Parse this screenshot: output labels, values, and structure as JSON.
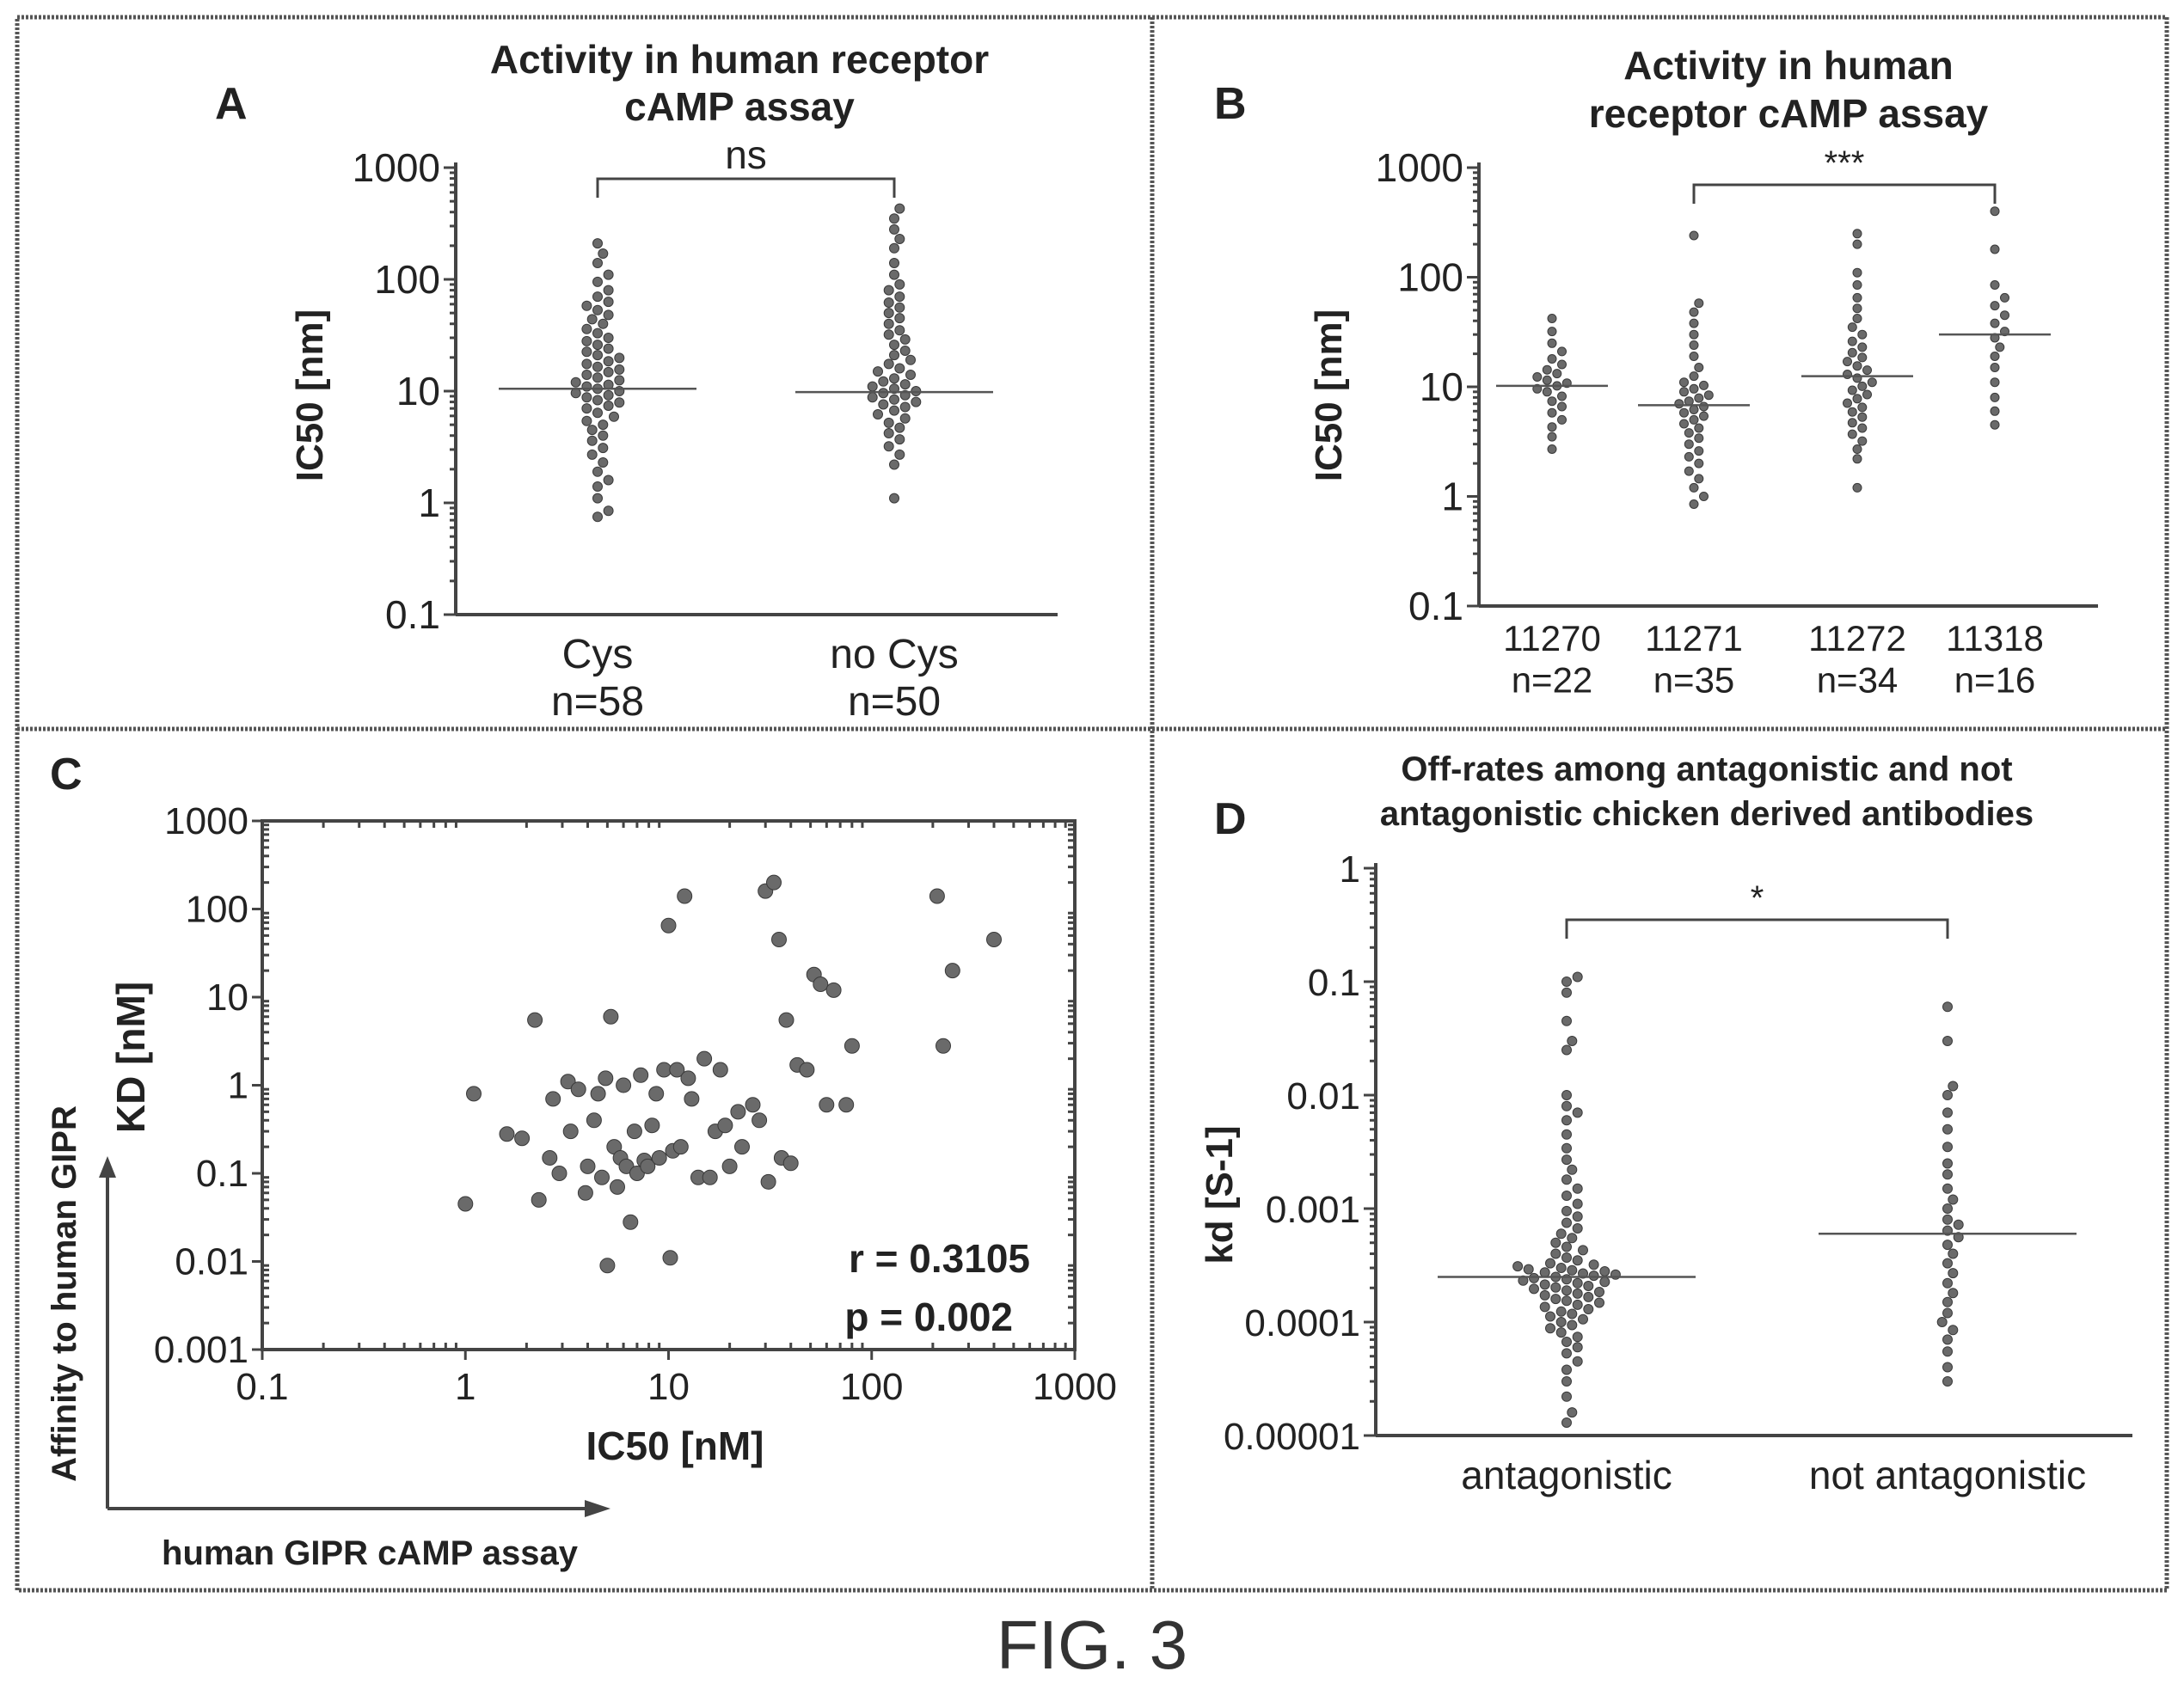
{
  "figure_caption": "FIG. 3",
  "chart_data": [
    {
      "panel": "A",
      "type": "scatter",
      "title": "Activity in human receptor cAMP assay",
      "ylabel": "IC50 [nm]",
      "yscale": "log",
      "ylim": [
        0.1,
        1000
      ],
      "yticks": [
        "1000",
        "100",
        "10",
        "1",
        "0.1"
      ],
      "categories": [
        "Cys",
        "no Cys"
      ],
      "counts": [
        "n=58",
        "n=50"
      ],
      "medians": [
        10.5,
        9.8
      ],
      "significance": "ns",
      "series": [
        {
          "values": [
            0.75,
            0.85,
            1.1,
            1.4,
            1.6,
            1.9,
            2.3,
            2.7,
            3.1,
            3.6,
            4.0,
            4.5,
            5.0,
            5.4,
            5.9,
            6.4,
            7.0,
            7.4,
            7.9,
            8.3,
            8.8,
            9.2,
            9.6,
            10.0,
            10.5,
            11.0,
            11.4,
            12.0,
            12.5,
            13.2,
            14.0,
            14.8,
            15.6,
            16.5,
            17.5,
            18.5,
            19.8,
            21.0,
            22.5,
            24.0,
            26.0,
            28.0,
            30.0,
            33.0,
            36.0,
            40.0,
            44.0,
            48.0,
            53.0,
            58.0,
            63.0,
            70.0,
            80.0,
            95.0,
            110.0,
            140.0,
            170.0,
            210.0
          ]
        },
        {
          "values": [
            1.1,
            2.2,
            2.7,
            3.2,
            3.7,
            4.2,
            4.7,
            5.2,
            5.7,
            6.2,
            6.7,
            7.2,
            7.6,
            8.0,
            8.4,
            8.8,
            9.2,
            9.6,
            10.0,
            10.5,
            11.0,
            11.5,
            12.2,
            13.0,
            14.0,
            15.0,
            16.0,
            17.5,
            19.0,
            21.0,
            23.0,
            26.0,
            29.0,
            32.0,
            35.0,
            40.0,
            45.0,
            50.0,
            56.0,
            62.0,
            70.0,
            80.0,
            90.0,
            110.0,
            140.0,
            190.0,
            230.0,
            280.0,
            350.0,
            430.0
          ]
        }
      ]
    },
    {
      "panel": "B",
      "type": "scatter",
      "title": "Activity in human receptor cAMP assay",
      "ylabel": "IC50 [nm]",
      "yscale": "log",
      "ylim": [
        0.1,
        1000
      ],
      "yticks": [
        "1000",
        "100",
        "10",
        "1",
        "0.1"
      ],
      "categories": [
        "11270",
        "11271",
        "11272",
        "11318"
      ],
      "counts": [
        "n=22",
        "n=35",
        "n=34",
        "n=16"
      ],
      "medians": [
        10.2,
        6.8,
        12.5,
        30.0
      ],
      "significance": "***",
      "series": [
        {
          "values": [
            2.7,
            3.5,
            4.3,
            5.0,
            5.8,
            6.6,
            7.4,
            8.2,
            9.0,
            9.6,
            10.2,
            10.8,
            11.5,
            12.3,
            13.2,
            14.3,
            16.0,
            18.0,
            21.0,
            25.0,
            32.0,
            42.0
          ]
        },
        {
          "values": [
            0.85,
            1.0,
            1.2,
            1.45,
            1.7,
            2.0,
            2.3,
            2.6,
            3.0,
            3.4,
            3.8,
            4.2,
            4.6,
            5.0,
            5.4,
            5.8,
            6.2,
            6.6,
            7.0,
            7.4,
            7.9,
            8.4,
            9.0,
            9.6,
            10.3,
            11.0,
            12.5,
            15.0,
            19.0,
            24.0,
            30.0,
            38.0,
            48.0,
            58.0,
            240.0
          ]
        },
        {
          "values": [
            1.2,
            2.2,
            2.7,
            3.2,
            3.7,
            4.2,
            4.7,
            5.3,
            5.9,
            6.5,
            7.1,
            7.8,
            8.5,
            9.3,
            10.1,
            11.0,
            12.0,
            13.0,
            14.2,
            15.5,
            17.0,
            18.5,
            20.5,
            23.0,
            26.0,
            30.0,
            35.0,
            42.0,
            52.0,
            65.0,
            85.0,
            110.0,
            200.0,
            250.0
          ]
        },
        {
          "values": [
            4.5,
            6.0,
            8.0,
            11.0,
            15.0,
            19.0,
            23.0,
            28.0,
            32.0,
            38.0,
            45.0,
            55.0,
            65.0,
            85.0,
            180.0,
            400.0
          ]
        }
      ]
    },
    {
      "panel": "C",
      "type": "scatter",
      "xlabel": "IC50 [nM]",
      "ylabel": "KD [nM]",
      "xscale": "log",
      "yscale": "log",
      "xlim": [
        0.1,
        1000
      ],
      "ylim": [
        0.001,
        1000
      ],
      "xticks": [
        "0.1",
        "1",
        "10",
        "100",
        "1000"
      ],
      "yticks": [
        "1000",
        "100",
        "10",
        "1",
        "0.1",
        "0.01",
        "0.001"
      ],
      "annotations": [
        "r = 0.3105",
        "p = 0.002"
      ],
      "outer_ylabel": "Affinity to human GIPR",
      "outer_xlabel": "human GIPR  cAMP assay",
      "points": [
        [
          1.0,
          0.045
        ],
        [
          1.1,
          0.8
        ],
        [
          1.6,
          0.28
        ],
        [
          1.9,
          0.25
        ],
        [
          2.2,
          5.5
        ],
        [
          2.3,
          0.05
        ],
        [
          2.6,
          0.15
        ],
        [
          2.7,
          0.7
        ],
        [
          2.9,
          0.1
        ],
        [
          3.2,
          1.1
        ],
        [
          3.3,
          0.3
        ],
        [
          3.6,
          0.9
        ],
        [
          3.9,
          0.06
        ],
        [
          4.0,
          0.12
        ],
        [
          4.3,
          0.4
        ],
        [
          4.5,
          0.8
        ],
        [
          4.7,
          0.09
        ],
        [
          4.9,
          1.2
        ],
        [
          5.0,
          0.009
        ],
        [
          5.2,
          6.0
        ],
        [
          5.4,
          0.2
        ],
        [
          5.6,
          0.07
        ],
        [
          5.8,
          0.15
        ],
        [
          6.0,
          1.0
        ],
        [
          6.2,
          0.12
        ],
        [
          6.5,
          0.028
        ],
        [
          6.8,
          0.3
        ],
        [
          7.0,
          0.1
        ],
        [
          7.3,
          1.3
        ],
        [
          7.6,
          0.14
        ],
        [
          7.9,
          0.12
        ],
        [
          8.3,
          0.35
        ],
        [
          8.7,
          0.8
        ],
        [
          9.0,
          0.15
        ],
        [
          9.5,
          1.5
        ],
        [
          10.0,
          65.0
        ],
        [
          10.2,
          0.011
        ],
        [
          10.5,
          0.18
        ],
        [
          11.0,
          1.5
        ],
        [
          11.5,
          0.2
        ],
        [
          12.0,
          140.0
        ],
        [
          12.5,
          1.2
        ],
        [
          13.0,
          0.7
        ],
        [
          14.0,
          0.09
        ],
        [
          15.0,
          2.0
        ],
        [
          16.0,
          0.09
        ],
        [
          17.0,
          0.3
        ],
        [
          18.0,
          1.5
        ],
        [
          19.0,
          0.35
        ],
        [
          20.0,
          0.12
        ],
        [
          22.0,
          0.5
        ],
        [
          23.0,
          0.2
        ],
        [
          26.0,
          0.6
        ],
        [
          28.0,
          0.4
        ],
        [
          30.0,
          160.0
        ],
        [
          31.0,
          0.08
        ],
        [
          33.0,
          200.0
        ],
        [
          35.0,
          45.0
        ],
        [
          36.0,
          0.15
        ],
        [
          38.0,
          5.5
        ],
        [
          40.0,
          0.13
        ],
        [
          43.0,
          1.7
        ],
        [
          48.0,
          1.5
        ],
        [
          52.0,
          18.0
        ],
        [
          56.0,
          14.0
        ],
        [
          60.0,
          0.6
        ],
        [
          65.0,
          12.0
        ],
        [
          75.0,
          0.6
        ],
        [
          80.0,
          2.8
        ],
        [
          210.0,
          140.0
        ],
        [
          225.0,
          2.8
        ],
        [
          250.0,
          20.0
        ],
        [
          400.0,
          45.0
        ]
      ]
    },
    {
      "panel": "D",
      "type": "scatter",
      "title": "Off-rates among antagonistic and not antagonistic chicken derived antibodies",
      "ylabel": "kd [S-1]",
      "yscale": "log",
      "ylim": [
        1e-05,
        1
      ],
      "yticks": [
        "1",
        "0.1",
        "0.01",
        "0.001",
        "0.0001",
        "0.00001"
      ],
      "categories": [
        "antagonistic",
        "not antagonistic"
      ],
      "medians": [
        0.00025,
        0.0006
      ],
      "significance": "*",
      "series": [
        {
          "values": [
            1.3e-05,
            1.6e-05,
            2.2e-05,
            3e-05,
            3.8e-05,
            4.5e-05,
            5.3e-05,
            6e-05,
            6.7e-05,
            7.4e-05,
            8.1e-05,
            8.8e-05,
            9.4e-05,
            0.0001,
            0.000106,
            0.000112,
            0.000118,
            0.000124,
            0.00013,
            0.000136,
            0.000142,
            0.000148,
            0.000154,
            0.00016,
            0.000166,
            0.000172,
            0.000178,
            0.000184,
            0.00019,
            0.000196,
            0.000202,
            0.000208,
            0.000214,
            0.00022,
            0.000226,
            0.000232,
            0.000238,
            0.000244,
            0.00025,
            0.000256,
            0.000262,
            0.000268,
            0.000274,
            0.00028,
            0.000286,
            0.000292,
            0.0003,
            0.00031,
            0.00032,
            0.00033,
            0.00035,
            0.00037,
            0.0004,
            0.00043,
            0.00046,
            0.0005,
            0.00055,
            0.0006,
            0.00067,
            0.00075,
            0.00085,
            0.00095,
            0.0011,
            0.0013,
            0.0015,
            0.0018,
            0.0022,
            0.0027,
            0.0034,
            0.0045,
            0.006,
            0.007,
            0.008,
            0.01,
            0.025,
            0.03,
            0.045,
            0.08,
            0.1,
            0.11
          ]
        },
        {
          "values": [
            3e-05,
            4e-05,
            5.5e-05,
            7e-05,
            8.5e-05,
            0.0001,
            0.00012,
            0.00015,
            0.00018,
            0.00022,
            0.00027,
            0.00033,
            0.0004,
            0.00048,
            0.00056,
            0.00064,
            0.00072,
            0.0008,
            0.001,
            0.0012,
            0.0015,
            0.002,
            0.0025,
            0.0035,
            0.005,
            0.007,
            0.01,
            0.012,
            0.03,
            0.06
          ]
        }
      ]
    }
  ]
}
